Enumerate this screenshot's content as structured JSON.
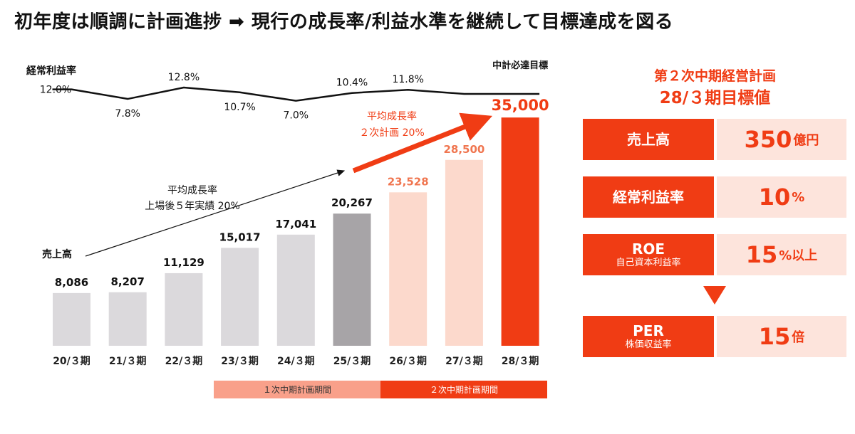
{
  "title": "初年度は順調に計画進捗 ➡ 現行の成長率/利益水準を継続して目標達成を図る",
  "chart_data": {
    "type": "bar",
    "categories": [
      "20/３期",
      "21/３期",
      "22/３期",
      "23/３期",
      "24/３期",
      "25/３期",
      "26/３期",
      "27/３期",
      "28/３期"
    ],
    "values": [
      8086,
      8207,
      11129,
      15017,
      17041,
      20267,
      23528,
      28500,
      35000
    ],
    "value_labels": [
      "8,086",
      "8,207",
      "11,129",
      "15,017",
      "17,041",
      "20,267",
      "23,528",
      "28,500",
      "35,000"
    ],
    "bar_colors": [
      "#dbd9dc",
      "#dbd9dc",
      "#dbd9dc",
      "#dbd9dc",
      "#dbd9dc",
      "#a7a4a7",
      "#fcd9cc",
      "#fcd9cc",
      "#f03c14"
    ],
    "label_colors": [
      "#111111",
      "#111111",
      "#111111",
      "#111111",
      "#111111",
      "#111111",
      "#f07650",
      "#f07650",
      "#f03c14"
    ],
    "series_label": "売上高",
    "ylim": [
      0,
      36000
    ],
    "target_label": "中計必達目標",
    "margin_series": {
      "name": "経常利益率",
      "values": [
        12.0,
        7.8,
        12.8,
        10.7,
        7.0,
        10.4,
        11.8,
        10.0,
        10.0
      ],
      "labels": [
        "12.0%",
        "7.8%",
        "12.8%",
        "10.7%",
        "7.0%",
        "10.4%",
        "11.8%",
        "",
        ""
      ]
    },
    "annotations": {
      "past_growth": [
        "平均成長率",
        "上場後５年実績 20%"
      ],
      "plan_growth": [
        "平均成長率",
        "２次計画 20%"
      ]
    },
    "periods": [
      {
        "label": "１次中期計画期間",
        "color": "#f9a08a"
      },
      {
        "label": "２次中期計画期間",
        "color": "#f03c14"
      }
    ]
  },
  "kpi": {
    "heading": [
      "第２次中期経営計画",
      "28/３期目標値"
    ],
    "rows": [
      {
        "label": "売上高",
        "sub": "",
        "value": "350",
        "unit": "億円"
      },
      {
        "label": "経常利益率",
        "sub": "",
        "value": "10",
        "unit": "%"
      },
      {
        "label": "ROE",
        "sub": "自己資本利益率",
        "value": "15",
        "unit": "%以上"
      },
      {
        "label": "PER",
        "sub": "株価収益率",
        "value": "15",
        "unit": "倍"
      }
    ]
  }
}
